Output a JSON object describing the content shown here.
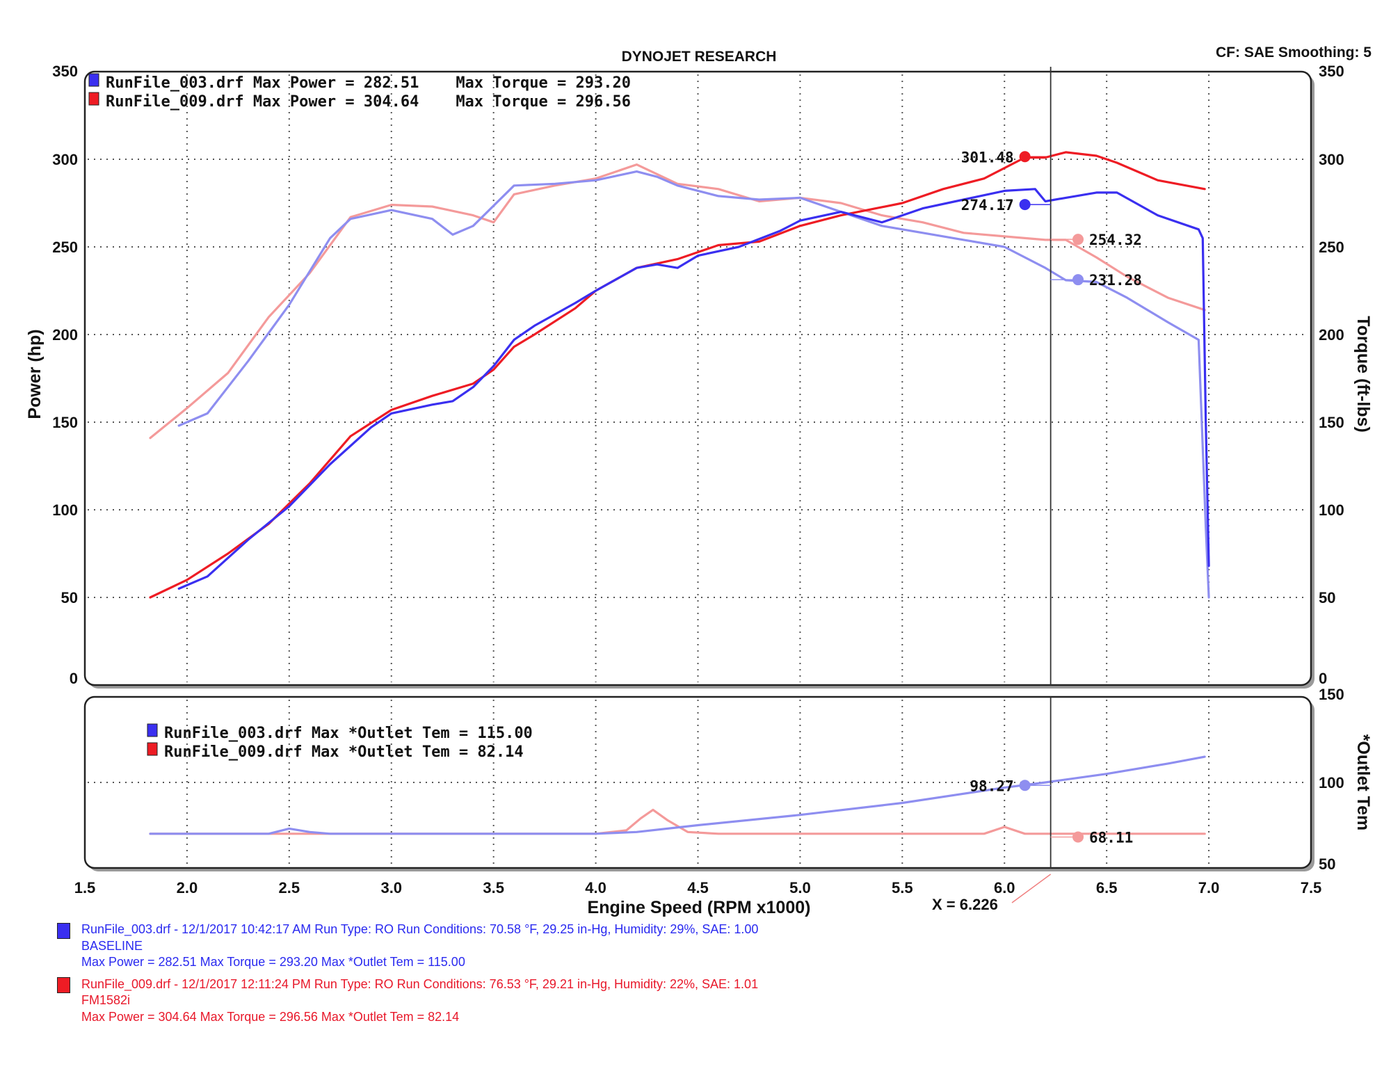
{
  "header": {
    "title": "DYNOJET RESEARCH",
    "cf_text": "CF: SAE  Smoothing: 5"
  },
  "colors": {
    "run003_strong": "#3a2ff0",
    "run003_light": "#8e8ef0",
    "run009_strong": "#ee1c24",
    "run009_light": "#f49a9a"
  },
  "legend_main": [
    {
      "text": "RunFile_003.drf Max Power = 282.51    Max Torque = 293.20",
      "color_key": "run003_strong"
    },
    {
      "text": "RunFile_009.drf Max Power = 304.64    Max Torque = 296.56",
      "color_key": "run009_strong"
    }
  ],
  "legend_temp": [
    {
      "text": "RunFile_003.drf Max *Outlet Tem = 115.00",
      "color_key": "run003_strong"
    },
    {
      "text": "RunFile_009.drf Max *Outlet Tem = 82.14",
      "color_key": "run009_strong"
    }
  ],
  "cursor": {
    "x_value": 6.226,
    "label": "X = 6.226"
  },
  "chart_data": [
    {
      "type": "line",
      "title": "DYNOJET RESEARCH",
      "xlabel": "Engine Speed (RPM x1000)",
      "ylabel": "Power (hp)",
      "y2label": "Torque (ft-lbs)",
      "xlim": [
        1.5,
        7.5
      ],
      "ylim": [
        0,
        350
      ],
      "y2lim": [
        0,
        350
      ],
      "x_ticks": [
        "1.5",
        "2.0",
        "2.5",
        "3.0",
        "3.5",
        "4.0",
        "4.5",
        "5.0",
        "5.5",
        "6.0",
        "6.5",
        "7.0",
        "7.5"
      ],
      "y_ticks": [
        "0",
        "50",
        "100",
        "150",
        "200",
        "250",
        "300",
        "350"
      ],
      "y2_ticks": [
        "0",
        "50",
        "100",
        "150",
        "200",
        "250",
        "300",
        "350"
      ],
      "grid": true,
      "series": [
        {
          "name": "RunFile_003.drf Power",
          "color_key": "run003_strong",
          "axis": "left",
          "x": [
            1.96,
            2.1,
            2.3,
            2.5,
            2.7,
            2.9,
            3.0,
            3.2,
            3.3,
            3.4,
            3.5,
            3.6,
            3.7,
            3.9,
            4.0,
            4.2,
            4.3,
            4.4,
            4.5,
            4.7,
            4.9,
            5.0,
            5.2,
            5.4,
            5.6,
            5.8,
            6.0,
            6.15,
            6.2,
            6.3,
            6.45,
            6.55,
            6.75,
            6.95,
            6.97,
            6.985,
            7.0
          ],
          "y": [
            55,
            62,
            83,
            102,
            126,
            147,
            155,
            160,
            162,
            170,
            182,
            197,
            205,
            218,
            225,
            238,
            240,
            238,
            245,
            250,
            259,
            265,
            270,
            264,
            272,
            277,
            282,
            283,
            276,
            278,
            281,
            281,
            268,
            260,
            255,
            150,
            68
          ]
        },
        {
          "name": "RunFile_009.drf Power",
          "color_key": "run009_strong",
          "axis": "left",
          "x": [
            1.82,
            2.0,
            2.2,
            2.4,
            2.6,
            2.8,
            3.0,
            3.2,
            3.4,
            3.5,
            3.6,
            3.7,
            3.9,
            4.0,
            4.2,
            4.4,
            4.6,
            4.8,
            5.0,
            5.2,
            5.5,
            5.7,
            5.9,
            6.1,
            6.2,
            6.3,
            6.45,
            6.55,
            6.75,
            6.98
          ],
          "y": [
            50,
            60,
            75,
            92,
            115,
            142,
            157,
            165,
            172,
            180,
            193,
            200,
            215,
            225,
            238,
            243,
            251,
            253,
            262,
            268,
            275,
            283,
            289,
            301,
            301,
            304,
            302,
            298,
            288,
            283
          ]
        },
        {
          "name": "RunFile_003.drf Torque",
          "color_key": "run003_light",
          "axis": "right",
          "x": [
            1.96,
            2.1,
            2.3,
            2.5,
            2.7,
            2.8,
            3.0,
            3.2,
            3.3,
            3.4,
            3.6,
            3.8,
            4.0,
            4.2,
            4.3,
            4.4,
            4.6,
            4.8,
            5.0,
            5.2,
            5.4,
            5.6,
            5.8,
            6.0,
            6.2,
            6.3,
            6.45,
            6.6,
            6.8,
            6.95,
            6.985,
            7.0
          ],
          "y": [
            148,
            155,
            185,
            217,
            255,
            266,
            271,
            266,
            257,
            262,
            285,
            286,
            288,
            293,
            290,
            285,
            279,
            277,
            278,
            270,
            262,
            258,
            254,
            250,
            238,
            231,
            230,
            221,
            207,
            197,
            90,
            50
          ]
        },
        {
          "name": "RunFile_009.drf Torque",
          "color_key": "run009_light",
          "axis": "right",
          "x": [
            1.82,
            2.0,
            2.2,
            2.4,
            2.6,
            2.8,
            3.0,
            3.2,
            3.4,
            3.5,
            3.6,
            3.8,
            4.0,
            4.2,
            4.4,
            4.6,
            4.8,
            5.0,
            5.2,
            5.4,
            5.6,
            5.8,
            6.0,
            6.2,
            6.3,
            6.45,
            6.6,
            6.8,
            6.98
          ],
          "y": [
            141,
            158,
            178,
            210,
            235,
            267,
            274,
            273,
            268,
            264,
            280,
            285,
            289,
            297,
            286,
            283,
            276,
            278,
            275,
            268,
            264,
            258,
            256,
            254,
            254,
            244,
            233,
            221,
            214
          ]
        }
      ],
      "markers": [
        {
          "label": "301.48",
          "x": 6.1,
          "y": 301.48,
          "color_key": "run009_strong"
        },
        {
          "label": "274.17",
          "x": 6.1,
          "y": 274.17,
          "color_key": "run003_strong"
        },
        {
          "label": "254.32",
          "x": 6.36,
          "y": 254.32,
          "color_key": "run009_light"
        },
        {
          "label": "231.28",
          "x": 6.36,
          "y": 231.28,
          "color_key": "run003_light"
        }
      ]
    },
    {
      "type": "line",
      "xlabel": "Engine Speed (RPM x1000)",
      "y2label": "*Outlet Tem",
      "xlim": [
        1.5,
        7.5
      ],
      "y2lim": [
        50,
        150
      ],
      "y2_ticks": [
        "50",
        "100",
        "150"
      ],
      "grid": true,
      "series": [
        {
          "name": "RunFile_003.drf *Outlet Tem",
          "color_key": "run003_light",
          "x": [
            1.82,
            2.4,
            2.5,
            2.6,
            2.7,
            3.0,
            3.5,
            4.0,
            4.2,
            4.5,
            5.0,
            5.5,
            6.0,
            6.2,
            6.5,
            6.8,
            6.98
          ],
          "y": [
            70,
            70,
            73,
            71,
            70,
            70,
            70,
            70,
            71,
            75,
            81,
            88,
            97,
            100,
            105,
            111,
            115
          ]
        },
        {
          "name": "RunFile_009.drf *Outlet Tem",
          "color_key": "run009_light",
          "x": [
            1.82,
            2.5,
            3.0,
            3.5,
            4.0,
            4.15,
            4.22,
            4.28,
            4.35,
            4.45,
            4.6,
            5.0,
            5.5,
            5.9,
            6.0,
            6.1,
            6.2,
            6.5,
            6.98
          ],
          "y": [
            70,
            70,
            70,
            70,
            70,
            72,
            79,
            84,
            78,
            71,
            70,
            70,
            70,
            70,
            74,
            70,
            70,
            70,
            70
          ]
        }
      ],
      "markers": [
        {
          "label": "98.27",
          "x": 6.1,
          "y": 98.27,
          "color_key": "run003_light"
        },
        {
          "label": "68.11",
          "x": 6.36,
          "y": 68.11,
          "color_key": "run009_light"
        }
      ]
    }
  ],
  "footer": {
    "runs": [
      {
        "line1": "RunFile_003.drf - 12/1/2017 10:42:17 AM  Run Type: RO  Run Conditions: 70.58 °F, 29.25 in-Hg,  Humidity:  29%, SAE: 1.00",
        "line2": "BASELINE",
        "line3": "Max Power = 282.51  Max Torque = 293.20  Max *Outlet Tem = 115.00"
      },
      {
        "line1": "RunFile_009.drf - 12/1/2017 12:11:24 PM  Run Type: RO  Run Conditions: 76.53 °F, 29.21 in-Hg,  Humidity:  22%, SAE: 1.01",
        "line2": "FM1582i",
        "line3": "Max Power = 304.64  Max Torque = 296.56  Max *Outlet Tem = 82.14"
      }
    ]
  }
}
